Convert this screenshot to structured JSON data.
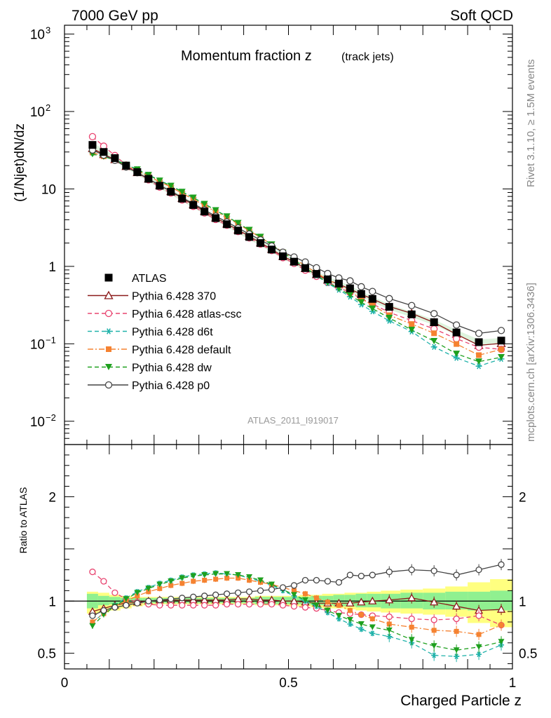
{
  "header": {
    "left": "7000 GeV pp",
    "right": "Soft QCD"
  },
  "side_texts": {
    "rivet": "Rivet 3.1.10, ≥ 1.5M events",
    "mcplots": "mcplots.cern.ch [arXiv:1306.3436]"
  },
  "chart_data": {
    "type": "line",
    "title": "Momentum fraction z",
    "title_sub": "(track jets)",
    "analysis_id": "ATLAS_2011_I919017",
    "xlabel": "Charged Particle z",
    "ylabel": "(1/Njet)dN/dz",
    "ratio_ylabel": "Ratio to ATLAS",
    "xlim": [
      0,
      1
    ],
    "ylim": [
      0.005,
      1300
    ],
    "y_scale": "log",
    "ratio_ylim": [
      0.35,
      2.5
    ],
    "x_ticks": [
      {
        "v": 0,
        "t": "0"
      },
      {
        "v": 0.5,
        "t": "0.5"
      },
      {
        "v": 1,
        "t": "1"
      }
    ],
    "main_y_ticks": [
      {
        "v": 0.01,
        "t": "10",
        "sup": "−2"
      },
      {
        "v": 0.1,
        "t": "10",
        "sup": "−1"
      },
      {
        "v": 1,
        "t": "1",
        "sup": ""
      },
      {
        "v": 10,
        "t": "10",
        "sup": ""
      },
      {
        "v": 100,
        "t": "10",
        "sup": "2"
      },
      {
        "v": 1000,
        "t": "10",
        "sup": "3"
      }
    ],
    "ratio_y_ticks": [
      {
        "v": 0.5,
        "t": "0.5"
      },
      {
        "v": 1,
        "t": "1"
      },
      {
        "v": 2,
        "t": "2"
      }
    ],
    "legend_position": "middle-left",
    "x": [
      0.0625,
      0.0875,
      0.1125,
      0.1375,
      0.1625,
      0.1875,
      0.2125,
      0.2375,
      0.2625,
      0.2875,
      0.3125,
      0.3375,
      0.3625,
      0.3875,
      0.4125,
      0.4375,
      0.4625,
      0.4875,
      0.5125,
      0.5375,
      0.5625,
      0.5875,
      0.6125,
      0.6375,
      0.6625,
      0.6875,
      0.725,
      0.775,
      0.825,
      0.875,
      0.925,
      0.975
    ],
    "data": {
      "name": "ATLAS",
      "values": [
        37,
        30,
        25,
        20,
        16.5,
        13.5,
        11,
        9.2,
        7.5,
        6.2,
        5.1,
        4.2,
        3.5,
        2.9,
        2.4,
        2.0,
        1.65,
        1.35,
        1.15,
        0.95,
        0.8,
        0.68,
        0.6,
        0.52,
        0.44,
        0.38,
        0.3,
        0.24,
        0.19,
        0.14,
        0.105,
        0.11
      ]
    },
    "ratio_bands": {
      "inner_low": [
        0.93,
        0.96,
        0.97,
        0.98,
        0.98,
        0.98,
        0.98,
        0.98,
        0.98,
        0.98,
        0.98,
        0.98,
        0.98,
        0.98,
        0.98,
        0.97,
        0.97,
        0.97,
        0.97,
        0.97,
        0.96,
        0.96,
        0.95,
        0.95,
        0.94,
        0.94,
        0.93,
        0.93,
        0.92,
        0.92,
        0.91,
        0.91
      ],
      "inner_high": [
        1.07,
        1.05,
        1.04,
        1.03,
        1.03,
        1.03,
        1.03,
        1.03,
        1.03,
        1.03,
        1.03,
        1.03,
        1.03,
        1.03,
        1.03,
        1.04,
        1.04,
        1.04,
        1.04,
        1.04,
        1.05,
        1.05,
        1.06,
        1.06,
        1.07,
        1.07,
        1.07,
        1.08,
        1.08,
        1.09,
        1.09,
        1.1
      ],
      "outer_low": [
        0.88,
        0.89,
        0.91,
        0.93,
        0.95,
        0.96,
        0.97,
        0.97,
        0.97,
        0.97,
        0.97,
        0.97,
        0.97,
        0.97,
        0.97,
        0.96,
        0.96,
        0.96,
        0.95,
        0.95,
        0.94,
        0.93,
        0.93,
        0.92,
        0.91,
        0.9,
        0.89,
        0.88,
        0.87,
        0.85,
        0.79,
        0.75
      ],
      "outer_high": [
        1.09,
        1.08,
        1.06,
        1.05,
        1.04,
        1.04,
        1.04,
        1.04,
        1.04,
        1.04,
        1.04,
        1.04,
        1.04,
        1.04,
        1.04,
        1.05,
        1.05,
        1.05,
        1.05,
        1.06,
        1.06,
        1.07,
        1.07,
        1.08,
        1.08,
        1.09,
        1.1,
        1.11,
        1.12,
        1.14,
        1.18,
        1.21
      ]
    },
    "series": [
      {
        "name": "Pythia 6.428 370",
        "color": "#8b1a1a",
        "marker": "triangle-open",
        "dash": "solid",
        "ratio": [
          0.9,
          0.93,
          0.96,
          0.98,
          0.99,
          1.0,
          1.01,
          1.01,
          1.01,
          1.01,
          1.01,
          1.01,
          1.01,
          1.02,
          1.02,
          1.01,
          1.01,
          1.0,
          1.0,
          0.99,
          0.98,
          0.98,
          0.98,
          0.98,
          0.99,
          1.0,
          1.01,
          1.03,
          0.99,
          0.95,
          0.91,
          0.92
        ]
      },
      {
        "name": "Pythia 6.428 atlas-csc",
        "color": "#e8436f",
        "marker": "circle-open",
        "dash": "dashed",
        "ratio": [
          1.28,
          1.19,
          1.08,
          1.02,
          0.99,
          0.97,
          0.96,
          0.96,
          0.96,
          0.96,
          0.96,
          0.96,
          0.97,
          0.97,
          0.97,
          0.97,
          0.97,
          0.96,
          0.95,
          0.94,
          0.93,
          0.91,
          0.89,
          0.88,
          0.87,
          0.86,
          0.85,
          0.83,
          0.82,
          0.83,
          0.86,
          0.77
        ]
      },
      {
        "name": "Pythia 6.428 d6t",
        "color": "#20b2aa",
        "marker": "star",
        "dash": "dashed",
        "ratio": [
          0.79,
          0.89,
          0.96,
          1.03,
          1.09,
          1.13,
          1.17,
          1.2,
          1.23,
          1.25,
          1.26,
          1.27,
          1.26,
          1.25,
          1.22,
          1.19,
          1.15,
          1.1,
          1.05,
          1.0,
          0.95,
          0.89,
          0.83,
          0.78,
          0.73,
          0.69,
          0.66,
          0.6,
          0.48,
          0.47,
          0.49,
          0.58
        ]
      },
      {
        "name": "Pythia 6.428 default",
        "color": "#f58231",
        "marker": "square",
        "dash": "dashdot",
        "ratio": [
          0.8,
          0.88,
          0.95,
          1.0,
          1.05,
          1.09,
          1.12,
          1.15,
          1.17,
          1.19,
          1.2,
          1.21,
          1.22,
          1.22,
          1.2,
          1.18,
          1.16,
          1.13,
          1.1,
          1.07,
          1.03,
          0.99,
          0.96,
          0.91,
          0.87,
          0.83,
          0.78,
          0.75,
          0.72,
          0.71,
          0.68,
          0.77
        ]
      },
      {
        "name": "Pythia 6.428 dw",
        "color": "#1ea01e",
        "marker": "triangle-down",
        "dash": "dashed",
        "ratio": [
          0.76,
          0.87,
          0.95,
          1.02,
          1.08,
          1.12,
          1.16,
          1.19,
          1.22,
          1.24,
          1.25,
          1.26,
          1.26,
          1.25,
          1.23,
          1.2,
          1.16,
          1.11,
          1.06,
          1.01,
          0.96,
          0.91,
          0.86,
          0.82,
          0.78,
          0.75,
          0.72,
          0.63,
          0.57,
          0.53,
          0.56,
          0.61
        ]
      },
      {
        "name": "Pythia 6.428 p0",
        "color": "#444444",
        "marker": "circle-open",
        "dash": "solid",
        "ratio": [
          0.86,
          0.91,
          0.94,
          0.96,
          0.98,
          1.0,
          1.01,
          1.02,
          1.03,
          1.04,
          1.05,
          1.06,
          1.07,
          1.08,
          1.09,
          1.1,
          1.11,
          1.13,
          1.15,
          1.2,
          1.2,
          1.19,
          1.18,
          1.25,
          1.24,
          1.25,
          1.28,
          1.3,
          1.29,
          1.25,
          1.3,
          1.35
        ]
      }
    ]
  }
}
